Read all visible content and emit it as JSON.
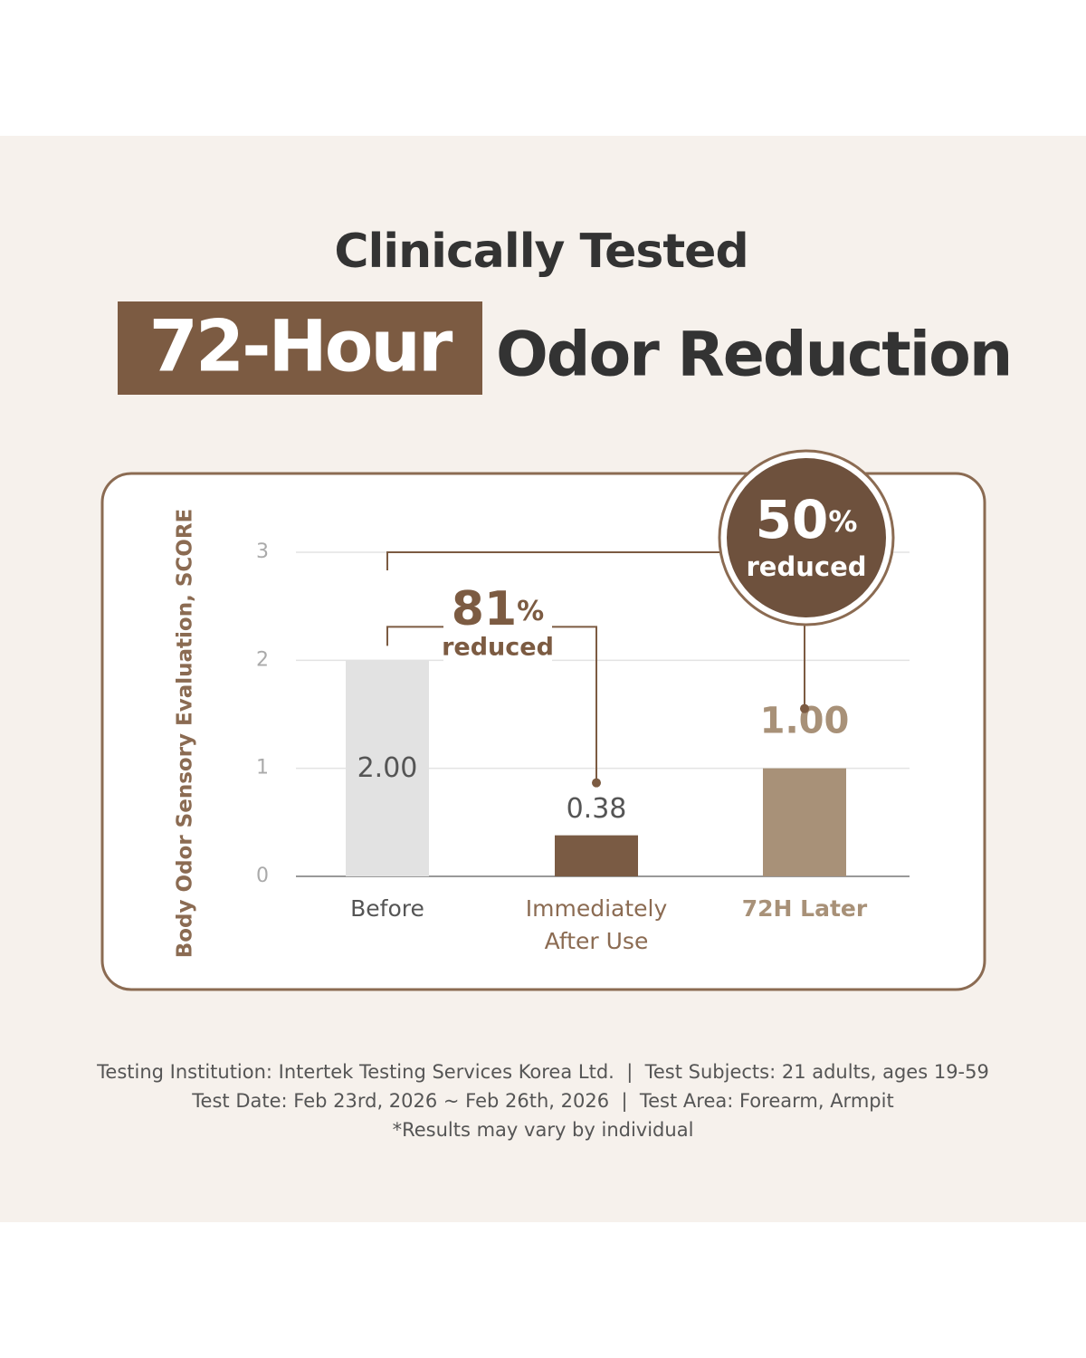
{
  "chart_data": {
    "type": "bar",
    "title": "Clinically Tested",
    "headline_highlight": "72-Hour",
    "headline": "Odor Reduction",
    "ylabel": "Body Odor Sensory Evaluation, SCORE",
    "categories": [
      "Before",
      "Immediately After Use",
      "72H Later"
    ],
    "values": [
      2,
      0.38,
      1
    ],
    "value_labels": [
      "2.00",
      "0.38",
      "1.00"
    ],
    "colors": [
      "#e2e2e2",
      "#7a5b44",
      "#a89178"
    ],
    "ylim": [
      0,
      3
    ],
    "yticks": [
      0,
      1,
      2,
      3
    ],
    "grid": true,
    "annotations": [
      {
        "text": "81",
        "unit": "%",
        "note": "reduced"
      },
      {
        "text": "50",
        "unit": "%",
        "note": "reduced"
      }
    ],
    "footnotes": [
      "Testing Institution: Intertek Testing Services Korea Ltd.  |  Test Subjects: 21 adults, ages 19-59",
      "Test Date: Feb 23rd, 2026 ~ Feb 26th, 2026  |  Test Area: Forearm, Armpit",
      "*Results may vary by individual"
    ]
  }
}
